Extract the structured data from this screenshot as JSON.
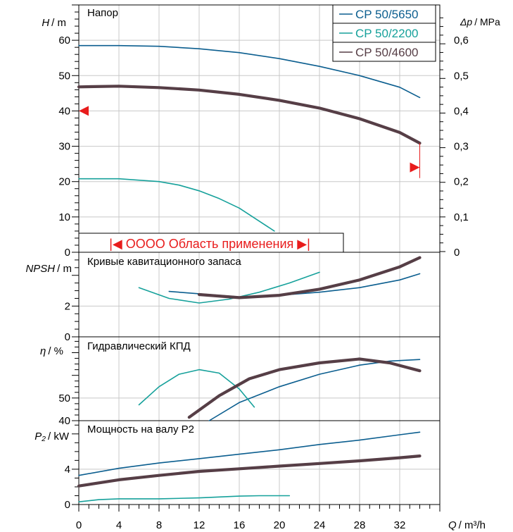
{
  "colors": {
    "cp5650": "#0b5e8f",
    "cp2200": "#16a19b",
    "cp4600": "#563e46",
    "range": "#e81c1c",
    "grid": "#c8c8c8"
  },
  "legend": [
    {
      "label": "CP 50/5650",
      "color": "#0b5e8f"
    },
    {
      "label": "CP 50/2200",
      "color": "#16a19b"
    },
    {
      "label": "CP 50/4600",
      "color": "#563e46"
    }
  ],
  "x_axis": {
    "label_q": "Q",
    "label_unit": "/ m³/h"
  },
  "range_label": "OOOO Область применения",
  "panels": {
    "head": {
      "title": "Напор",
      "ylabel_var": "H",
      "ylabel_unit": "/ m",
      "right_label_var": "Δp",
      "right_label_unit": "/ MPa"
    },
    "npsh": {
      "title": "Кривые кавитационного запаса",
      "ylabel_var": "NPSH",
      "ylabel_unit": "/ m"
    },
    "eff": {
      "title": "Гидравлический КПД",
      "ylabel_var": "η",
      "ylabel_unit": "/ %"
    },
    "power": {
      "title": "Мощность на валу P2",
      "ylabel_var": "P₂",
      "ylabel_unit": "/ kW"
    }
  },
  "chart_data": [
    {
      "type": "line",
      "title": "Напор",
      "xlabel": "Q / m³/h",
      "ylabel": "H / m",
      "y2label": "Δp / MPa",
      "xlim": [
        0,
        36
      ],
      "ylim": [
        0,
        70
      ],
      "xticks": [
        "0",
        "4",
        "8",
        "12",
        "16",
        "20",
        "24",
        "28",
        "32"
      ],
      "yticks": [
        "0",
        "10",
        "20",
        "30",
        "40",
        "50",
        "60"
      ],
      "y2ticks": [
        "0",
        "0,1",
        "0,2",
        "0,3",
        "0,4",
        "0,5",
        "0,6"
      ],
      "grid": true,
      "legend_position": "top-right",
      "series": [
        {
          "name": "CP 50/5650",
          "x": [
            0,
            4,
            8,
            12,
            16,
            20,
            24,
            28,
            32,
            34
          ],
          "y": [
            58.5,
            58.5,
            58.3,
            57.6,
            56.5,
            54.8,
            52.6,
            50.0,
            46.7,
            43.8
          ]
        },
        {
          "name": "CP 50/2200",
          "x": [
            0,
            4,
            8,
            10,
            12,
            14,
            16,
            18,
            19.5
          ],
          "y": [
            20.8,
            20.8,
            20.0,
            19.0,
            17.4,
            15.2,
            12.5,
            8.8,
            6.0
          ]
        },
        {
          "name": "CP 50/4600",
          "x": [
            0,
            4,
            8,
            12,
            16,
            20,
            24,
            28,
            32,
            34
          ],
          "y": [
            46.8,
            47.0,
            46.6,
            45.9,
            44.7,
            43.0,
            40.8,
            37.8,
            33.9,
            30.9
          ]
        }
      ],
      "annotations": {
        "range_min_q": 1.5,
        "range_max_q": 33,
        "marker_low_h": 40,
        "marker_high_h": 24
      }
    },
    {
      "type": "line",
      "title": "Кривые кавитационного запаса",
      "xlabel": "Q / m³/h",
      "ylabel": "NPSH / m",
      "xlim": [
        0,
        36
      ],
      "ylim": [
        0,
        5.5
      ],
      "yticks": [
        "0",
        "2"
      ],
      "grid": true,
      "series": [
        {
          "name": "CP 50/5650",
          "x": [
            9,
            12,
            16,
            20,
            24,
            28,
            32,
            34
          ],
          "y": [
            2.95,
            2.8,
            2.6,
            2.7,
            2.9,
            3.2,
            3.7,
            4.1
          ]
        },
        {
          "name": "CP 50/2200",
          "x": [
            6,
            9,
            12,
            15,
            18,
            21,
            24
          ],
          "y": [
            3.2,
            2.5,
            2.2,
            2.45,
            2.9,
            3.5,
            4.2
          ]
        },
        {
          "name": "CP 50/4600",
          "x": [
            12,
            16,
            20,
            24,
            28,
            32,
            34
          ],
          "y": [
            2.75,
            2.55,
            2.7,
            3.1,
            3.7,
            4.55,
            5.15
          ]
        }
      ]
    },
    {
      "type": "line",
      "title": "Гидравлический КПД",
      "xlabel": "Q / m³/h",
      "ylabel": "η / %",
      "xlim": [
        0,
        36
      ],
      "ylim": [
        40,
        77
      ],
      "yticks": [
        "40",
        "50"
      ],
      "grid": true,
      "series": [
        {
          "name": "CP 50/5650",
          "x": [
            13,
            16,
            20,
            24,
            28,
            31,
            34
          ],
          "y": [
            40,
            48,
            55,
            60.5,
            64.5,
            66.3,
            67.0
          ]
        },
        {
          "name": "CP 50/2200",
          "x": [
            6,
            8,
            10,
            12,
            14,
            16,
            17.5
          ],
          "y": [
            47,
            55,
            60.5,
            62.5,
            61,
            54,
            46
          ]
        },
        {
          "name": "CP 50/4600",
          "x": [
            11,
            14,
            17,
            20,
            24,
            28,
            31,
            34
          ],
          "y": [
            41.5,
            51,
            58.5,
            62.5,
            65.5,
            67.2,
            65.5,
            62.0
          ]
        }
      ]
    },
    {
      "type": "line",
      "title": "Мощность на валу P2",
      "xlabel": "Q / m³/h",
      "ylabel": "P₂ / kW",
      "xlim": [
        0,
        36
      ],
      "ylim": [
        0,
        9.5
      ],
      "xticks": [
        "0",
        "4",
        "8",
        "12",
        "16",
        "20",
        "24",
        "28",
        "32"
      ],
      "yticks": [
        "0",
        "4"
      ],
      "grid": true,
      "series": [
        {
          "name": "CP 50/5650",
          "x": [
            0,
            4,
            8,
            12,
            16,
            20,
            24,
            28,
            32,
            34
          ],
          "y": [
            3.3,
            4.1,
            4.7,
            5.2,
            5.7,
            6.2,
            6.8,
            7.3,
            7.9,
            8.2
          ]
        },
        {
          "name": "CP 50/2200",
          "x": [
            0,
            2,
            4,
            8,
            12,
            16,
            18,
            21
          ],
          "y": [
            0.3,
            0.55,
            0.65,
            0.65,
            0.75,
            0.95,
            1.0,
            1.0
          ]
        },
        {
          "name": "CP 50/4600",
          "x": [
            0,
            4,
            8,
            12,
            16,
            20,
            24,
            28,
            32,
            34
          ],
          "y": [
            2.1,
            2.8,
            3.3,
            3.75,
            4.05,
            4.35,
            4.65,
            4.95,
            5.3,
            5.5
          ]
        }
      ]
    }
  ]
}
